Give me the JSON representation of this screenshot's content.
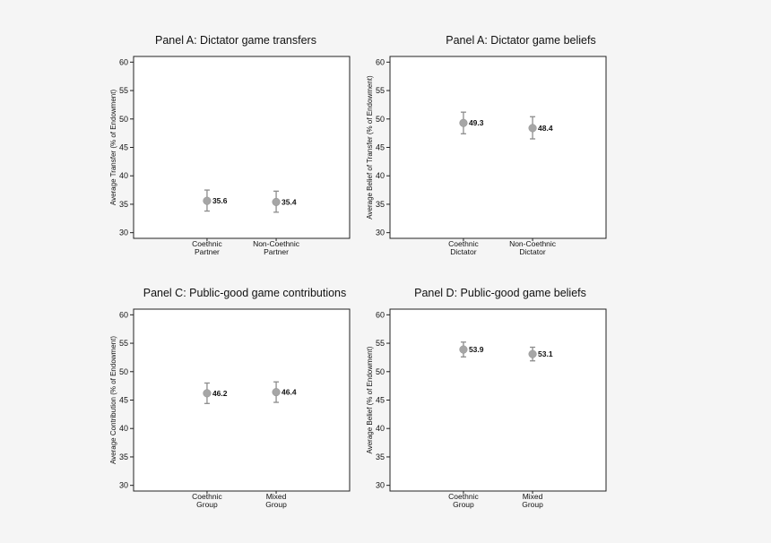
{
  "colors": {
    "marker": "#a6a6a6",
    "error_bar": "#8c8c8c",
    "frame": "#222222",
    "background": "#ffffff"
  },
  "chart_data": [
    {
      "type": "scatter",
      "title": "Panel A: Dictator game transfers",
      "ylabel": "Average Transfer (% of Endowment)",
      "ylim": [
        29,
        61
      ],
      "yticks": [
        30,
        35,
        40,
        45,
        50,
        55,
        60
      ],
      "categories": [
        [
          "Coethnic",
          "Partner"
        ],
        [
          "Non-Coethnic",
          "Partner"
        ]
      ],
      "values": [
        35.6,
        35.4
      ],
      "error_low": [
        33.8,
        33.6
      ],
      "error_high": [
        37.5,
        37.3
      ],
      "data_labels": [
        "35.6",
        "35.4"
      ],
      "grid": false
    },
    {
      "type": "scatter",
      "title": "Panel A: Dictator game beliefs",
      "ylabel": "Average Belief of Transfer (% of Endowment)",
      "ylim": [
        29,
        61
      ],
      "yticks": [
        30,
        35,
        40,
        45,
        50,
        55,
        60
      ],
      "categories": [
        [
          "Coethnic",
          "Dictator"
        ],
        [
          "Non-Coethnic",
          "Dictator"
        ]
      ],
      "values": [
        49.3,
        48.4
      ],
      "error_low": [
        47.4,
        46.5
      ],
      "error_high": [
        51.2,
        50.4
      ],
      "data_labels": [
        "49.3",
        "48.4"
      ],
      "grid": false
    },
    {
      "type": "scatter",
      "title": "Panel C: Public-good game contributions",
      "ylabel": "Average Contribution (% of Endowment)",
      "ylim": [
        29,
        61
      ],
      "yticks": [
        30,
        35,
        40,
        45,
        50,
        55,
        60
      ],
      "categories": [
        [
          "Coethnic",
          "Group"
        ],
        [
          "Mixed",
          "Group"
        ]
      ],
      "values": [
        46.2,
        46.4
      ],
      "error_low": [
        44.4,
        44.6
      ],
      "error_high": [
        48.0,
        48.2
      ],
      "data_labels": [
        "46.2",
        "46.4"
      ],
      "grid": false
    },
    {
      "type": "scatter",
      "title": "Panel D: Public-good game beliefs",
      "ylabel": "Average Belief (% of Endowment)",
      "ylim": [
        29,
        61
      ],
      "yticks": [
        30,
        35,
        40,
        45,
        50,
        55,
        60
      ],
      "categories": [
        [
          "Coethnic",
          "Group"
        ],
        [
          "Mixed",
          "Group"
        ]
      ],
      "values": [
        53.9,
        53.1
      ],
      "error_low": [
        52.6,
        51.9
      ],
      "error_high": [
        55.2,
        54.3
      ],
      "data_labels": [
        "53.9",
        "53.1"
      ],
      "grid": false
    }
  ]
}
